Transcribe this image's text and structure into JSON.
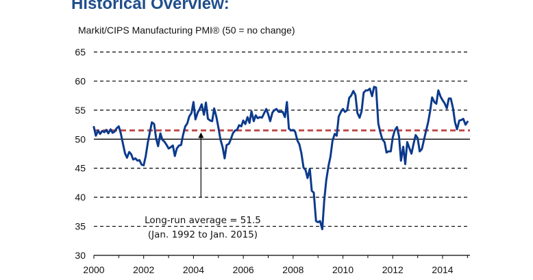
{
  "header": {
    "title": "Historical Overview:",
    "subtitle": "Markit/CIPS Manufacturing PMI® (50 = no change)"
  },
  "colors": {
    "title": "#1f4e8c",
    "series": "#0b3a8c",
    "average_line": "#c0504d",
    "grid": "#000000"
  },
  "annotation": {
    "line1": "Long-run average = 51.5",
    "line2": "(Jan. 1992 to Jan. 2015)",
    "arrow_x": 2004.3
  },
  "chart_data": {
    "type": "line",
    "title": "Historical Overview:",
    "subtitle": "Markit/CIPS Manufacturing PMI® (50 = no change)",
    "xlabel": "",
    "ylabel": "",
    "xlim": [
      2000,
      2015.1
    ],
    "ylim": [
      30,
      65
    ],
    "yticks": [
      30,
      35,
      40,
      45,
      50,
      55,
      60,
      65
    ],
    "xticks": [
      2000,
      2002,
      2004,
      2006,
      2008,
      2010,
      2012,
      2014
    ],
    "grid": "horizontal dashed",
    "reference_lines": [
      {
        "y": 50,
        "style": "solid"
      },
      {
        "y": 51.5,
        "style": "dashed",
        "label": "Long-run average = 51.5"
      }
    ],
    "series": [
      {
        "x": [
          2000.0,
          2000.08,
          2000.17,
          2000.25,
          2000.33,
          2000.42,
          2000.5,
          2000.58,
          2000.67,
          2000.75,
          2000.83,
          2000.92,
          2001.0,
          2001.08,
          2001.17,
          2001.25,
          2001.33,
          2001.42,
          2001.5,
          2001.58,
          2001.67,
          2001.75,
          2001.83,
          2001.92,
          2002.0,
          2002.08,
          2002.17,
          2002.25,
          2002.33,
          2002.42,
          2002.5,
          2002.58,
          2002.67,
          2002.75,
          2002.83,
          2002.92,
          2003.0,
          2003.08,
          2003.17,
          2003.25,
          2003.33,
          2003.42,
          2003.5,
          2003.58,
          2003.67,
          2003.75,
          2003.83,
          2003.92,
          2004.0,
          2004.08,
          2004.17,
          2004.25,
          2004.33,
          2004.42,
          2004.5,
          2004.58,
          2004.67,
          2004.75,
          2004.83,
          2004.92,
          2005.0,
          2005.08,
          2005.17,
          2005.25,
          2005.33,
          2005.42,
          2005.5,
          2005.58,
          2005.67,
          2005.75,
          2005.83,
          2005.92,
          2006.0,
          2006.08,
          2006.17,
          2006.25,
          2006.33,
          2006.42,
          2006.5,
          2006.58,
          2006.67,
          2006.75,
          2006.83,
          2006.92,
          2007.0,
          2007.08,
          2007.17,
          2007.25,
          2007.33,
          2007.42,
          2007.5,
          2007.58,
          2007.67,
          2007.75,
          2007.83,
          2007.92,
          2008.0,
          2008.08,
          2008.17,
          2008.25,
          2008.33,
          2008.42,
          2008.5,
          2008.58,
          2008.67,
          2008.75,
          2008.83,
          2008.92,
          2009.0,
          2009.08,
          2009.17,
          2009.25,
          2009.33,
          2009.42,
          2009.5,
          2009.58,
          2009.67,
          2009.75,
          2009.83,
          2009.92,
          2010.0,
          2010.08,
          2010.17,
          2010.25,
          2010.33,
          2010.42,
          2010.5,
          2010.58,
          2010.67,
          2010.75,
          2010.83,
          2010.92,
          2011.0,
          2011.08,
          2011.17,
          2011.25,
          2011.33,
          2011.42,
          2011.5,
          2011.58,
          2011.67,
          2011.75,
          2011.83,
          2011.92,
          2012.0,
          2012.08,
          2012.17,
          2012.25,
          2012.33,
          2012.42,
          2012.5,
          2012.58,
          2012.67,
          2012.75,
          2012.83,
          2012.92,
          2013.0,
          2013.08,
          2013.17,
          2013.25,
          2013.33,
          2013.42,
          2013.5,
          2013.58,
          2013.67,
          2013.75,
          2013.83,
          2013.92,
          2014.0,
          2014.08,
          2014.17,
          2014.25,
          2014.33,
          2014.42,
          2014.5,
          2014.58,
          2014.67,
          2014.75,
          2014.83,
          2014.92,
          2015.0
        ],
        "values": [
          52.1,
          50.6,
          51.5,
          50.9,
          51.4,
          51.2,
          51.6,
          51.0,
          51.7,
          51.1,
          51.3,
          51.9,
          52.2,
          51.0,
          49.2,
          47.6,
          46.8,
          47.8,
          47.4,
          46.5,
          46.7,
          46.3,
          46.4,
          45.6,
          45.5,
          47.0,
          49.5,
          51.2,
          52.9,
          52.6,
          50.1,
          48.8,
          51.0,
          49.9,
          49.6,
          49.0,
          48.4,
          48.6,
          48.9,
          47.1,
          48.4,
          48.9,
          49.0,
          50.7,
          52.2,
          52.7,
          53.9,
          54.5,
          56.4,
          53.4,
          54.6,
          55.2,
          56.0,
          54.2,
          56.3,
          53.5,
          53.2,
          53.1,
          55.3,
          53.8,
          52.0,
          50.0,
          48.6,
          46.7,
          49.0,
          49.2,
          50.0,
          51.0,
          51.5,
          51.6,
          52.4,
          52.2,
          53.2,
          52.6,
          53.8,
          52.8,
          54.8,
          53.1,
          54.1,
          53.6,
          53.8,
          53.7,
          54.4,
          55.2,
          54.3,
          53.1,
          54.6,
          55.0,
          55.2,
          54.7,
          54.7,
          54.7,
          53.8,
          56.4,
          51.8,
          51.5,
          51.6,
          51.3,
          49.8,
          49.1,
          47.6,
          45.1,
          44.7,
          43.3,
          44.9,
          41.1,
          40.8,
          35.9,
          35.7,
          35.9,
          34.5,
          39.5,
          42.9,
          45.4,
          47.0,
          49.7,
          50.9,
          50.6,
          53.9,
          54.7,
          55.2,
          54.7,
          55.0,
          57.1,
          57.5,
          58.3,
          57.6,
          54.5,
          53.7,
          54.8,
          58.0,
          58.4,
          58.4,
          58.7,
          57.4,
          59.0,
          58.9,
          52.7,
          51.2,
          50.0,
          49.5,
          47.7,
          47.9,
          47.9,
          50.3,
          51.5,
          52.1,
          50.5,
          46.3,
          48.7,
          45.7,
          49.5,
          48.4,
          47.5,
          49.1,
          50.7,
          50.2,
          47.9,
          48.3,
          49.8,
          51.3,
          52.9,
          54.8,
          57.2,
          56.4,
          56.1,
          58.4,
          57.3,
          56.7,
          56.2,
          55.3,
          57.0,
          57.0,
          55.3,
          52.9,
          51.7,
          53.2,
          53.3,
          53.5,
          52.5,
          53.0
        ]
      }
    ]
  }
}
